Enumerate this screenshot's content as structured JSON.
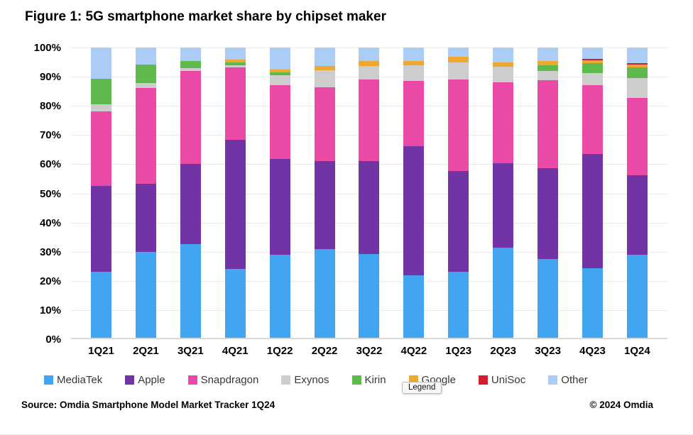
{
  "page": {
    "title": "Figure 1: 5G smartphone market share by chipset maker",
    "source": "Source: Omdia Smartphone Model Market Tracker 1Q24",
    "copyright": "© 2024 Omdia",
    "tooltip": "Legend"
  },
  "chart_data": {
    "type": "bar",
    "stacked": true,
    "title": "Figure 1: 5G smartphone market share by chipset maker",
    "xlabel": "",
    "ylabel": "",
    "ylim": [
      0,
      100
    ],
    "y_ticks": [
      0,
      10,
      20,
      30,
      40,
      50,
      60,
      70,
      80,
      90,
      100
    ],
    "y_tick_labels": [
      "0%",
      "10%",
      "20%",
      "30%",
      "40%",
      "50%",
      "60%",
      "70%",
      "80%",
      "90%",
      "100%"
    ],
    "grid": true,
    "legend_position": "bottom",
    "categories": [
      "1Q21",
      "2Q21",
      "3Q21",
      "4Q21",
      "1Q22",
      "2Q22",
      "3Q22",
      "4Q22",
      "1Q23",
      "2Q23",
      "3Q23",
      "4Q23",
      "1Q24"
    ],
    "series": [
      {
        "name": "MediaTek",
        "color": "#42A5F1",
        "values": [
          23.0,
          30.0,
          32.5,
          24.0,
          29.0,
          31.0,
          29.3,
          22.0,
          23.0,
          31.5,
          27.6,
          24.4,
          29.0
        ]
      },
      {
        "name": "Apple",
        "color": "#7233A5",
        "values": [
          29.5,
          23.4,
          27.5,
          44.3,
          32.8,
          30.0,
          31.7,
          44.1,
          34.7,
          28.9,
          31.1,
          39.0,
          27.1
        ]
      },
      {
        "name": "Snapdragon",
        "color": "#EA4AA6",
        "values": [
          25.5,
          32.8,
          31.9,
          24.9,
          25.2,
          25.4,
          28.0,
          22.4,
          31.3,
          27.7,
          30.2,
          23.7,
          26.7
        ]
      },
      {
        "name": "Exynos",
        "color": "#CDCDCD",
        "values": [
          2.6,
          1.6,
          1.0,
          0.8,
          3.6,
          5.7,
          4.7,
          5.5,
          6.0,
          5.3,
          3.2,
          4.2,
          6.7
        ]
      },
      {
        "name": "Kirin",
        "color": "#5EBA4C",
        "values": [
          8.7,
          6.4,
          2.6,
          1.0,
          1.0,
          0.0,
          0.0,
          0.0,
          0.0,
          0.0,
          1.9,
          3.3,
          3.6
        ]
      },
      {
        "name": "Google",
        "color": "#EFA82F",
        "values": [
          0.0,
          0.0,
          0.0,
          0.8,
          0.8,
          1.5,
          1.7,
          1.4,
          1.8,
          1.6,
          1.4,
          1.1,
          1.0
        ]
      },
      {
        "name": "UniSoc",
        "color": "#CF2030",
        "values": [
          0.0,
          0.0,
          0.0,
          0.0,
          0.0,
          0.0,
          0.0,
          0.0,
          0.0,
          0.0,
          0.0,
          0.5,
          0.5
        ]
      },
      {
        "name": "Other",
        "color": "#ABCCF5",
        "values": [
          10.7,
          5.8,
          4.5,
          4.2,
          7.6,
          6.4,
          4.6,
          4.6,
          3.2,
          5.0,
          4.6,
          3.8,
          5.4
        ]
      }
    ]
  }
}
